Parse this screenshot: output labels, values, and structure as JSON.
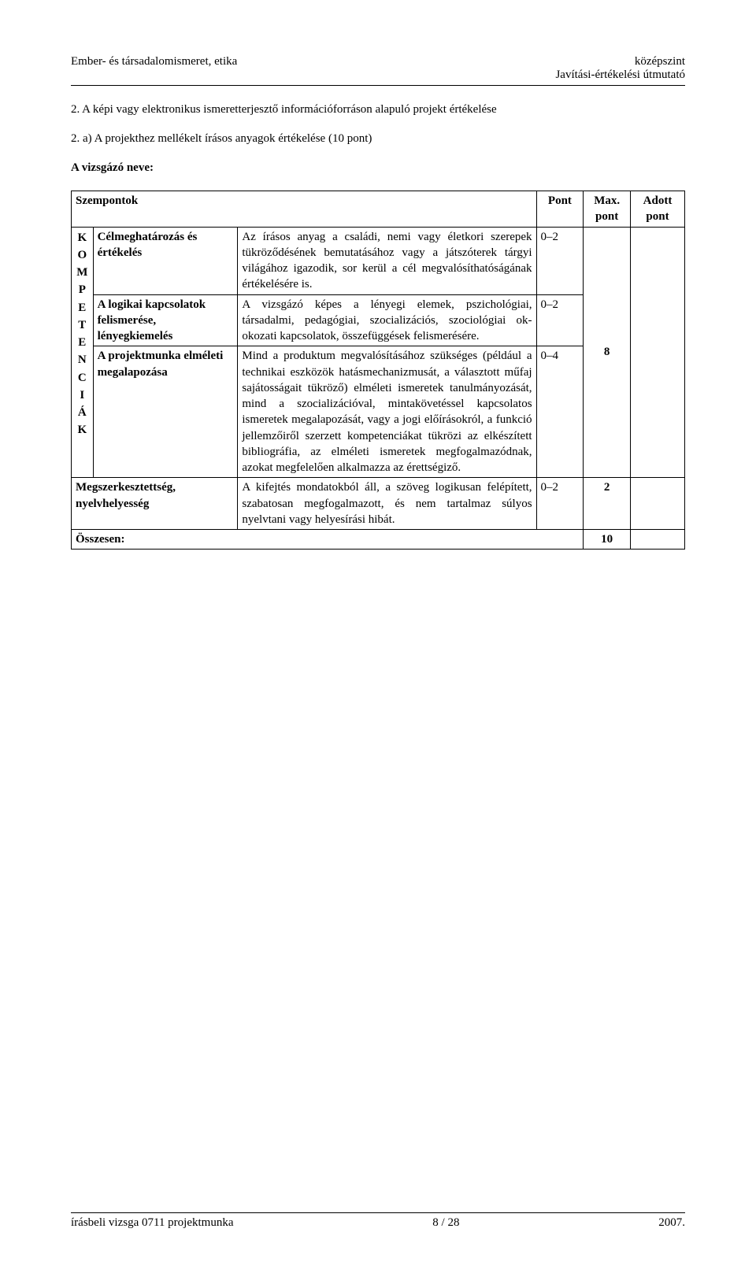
{
  "header": {
    "left": "Ember- és társadalomismeret, etika",
    "right_top": "középszint",
    "right_bottom": "Javítási-értékelési útmutató"
  },
  "section": {
    "title": "2. A képi vagy elektronikus ismeretterjesztő információforráson alapuló projekt értékelése",
    "subtitle": "2. a) A projekthez mellékelt írásos anyagok értékelése (10 pont)",
    "candidate": "A vizsgázó neve:"
  },
  "table": {
    "vertical_label": [
      "K",
      "O",
      "M",
      "P",
      "E",
      "T",
      "E",
      "N",
      "C",
      "I",
      "Á",
      "K"
    ],
    "headers": {
      "szempontok": "Szempontok",
      "pont": "Pont",
      "max": "Max. pont",
      "adott": "Adott pont"
    },
    "rows": [
      {
        "crit": "Célmeghatározás és értékelés",
        "desc": "Az írásos anyag a családi, nemi vagy életkori szerepek tükröződésének bemutatásához vagy a játszóterek tárgyi világához igazodik, sor kerül a cél megvalósíthatóságának értékelésére is.",
        "pont": "0–2"
      },
      {
        "crit": "A logikai kapcsolatok felismerése, lényegkiemelés",
        "desc": "A vizsgázó képes a lényegi elemek, pszichológiai, társadalmi, pedagógiai, szocializációs, szociológiai ok-okozati kapcsolatok, összefüggések felismerésére.",
        "pont": "0–2"
      },
      {
        "crit": "A projektmunka elméleti megalapozása",
        "desc": "Mind a produktum megvalósításához szükséges (például a technikai eszközök hatásmechanizmusát, a választott műfaj sajátosságait tükröző) elméleti ismeretek tanulmányozását, mind a szocializációval, mintakövetéssel kapcsolatos ismeretek megalapozását, vagy a jogi előírásokról, a funkció jellemzőiről szerzett kompetenciákat tükrözi az elkészített bibliográfia, az elméleti ismeretek megfogalmazódnak, azokat megfelelően alkalmazza az érettségiző.",
        "pont": "0–4"
      }
    ],
    "group_max": "8",
    "final_row": {
      "crit": "Megszerkesztettség, nyelvhelyesség",
      "desc": "A kifejtés mondatokból áll, a szöveg logikusan felépített, szabatosan megfogalmazott, és nem tartalmaz súlyos nyelvtani vagy helyesírási hibát.",
      "pont": "0–2",
      "max": "2"
    },
    "total": {
      "label": "Összesen:",
      "value": "10"
    }
  },
  "footer": {
    "left": "írásbeli vizsga 0711 projektmunka",
    "center": "8 / 28",
    "right": "2007."
  }
}
